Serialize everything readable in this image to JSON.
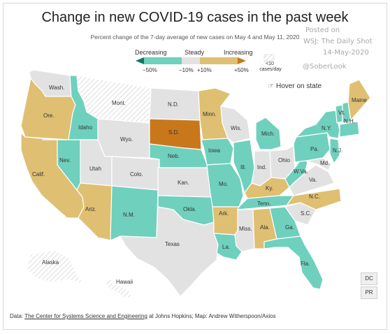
{
  "title": "Change in new COVID-19 cases in the past week",
  "subtitle": "Percent change of the 7-day average of new cases on May 4 and May 11, 2020",
  "watermark": {
    "line1": "Posted on",
    "line2": "WSJ: The Daily Shot",
    "line3": "14-May-2020",
    "handle": "@SoberLook"
  },
  "legend": {
    "decreasing": "Decreasing",
    "steady": "Steady",
    "increasing": "Increasing",
    "tick_neg50": "−50%",
    "tick_neg10": "−10%",
    "tick_pos10": "+10%",
    "tick_pos50": "+50%",
    "small_a": "<10",
    "small_b": "cases/day"
  },
  "hover_text": "Hover on state",
  "colors": {
    "decreasing_strong": "#0b7a5c",
    "decreasing": "#6fd0bd",
    "steady": "#e2e2e2",
    "increasing": "#dfbf72",
    "increasing_strong": "#c8781a",
    "few_cases_hatch": "#d6d6d6"
  },
  "states": {
    "wa": "Wash.",
    "or": "Ore.",
    "ca": "Calif.",
    "id": "Idaho",
    "nv": "Nev.",
    "mt": "Mont.",
    "wy": "Wyo.",
    "ut": "Utah",
    "az": "Ariz.",
    "co": "Colo.",
    "nm": "N.M.",
    "nd": "N.D.",
    "sd": "S.D.",
    "ne": "Neb.",
    "ks": "Kan.",
    "ok": "Okla.",
    "tx": "Texas",
    "mn": "Minn.",
    "ia": "Iowa",
    "mo": "Mo.",
    "ar": "Ark.",
    "la": "La.",
    "wi": "Wis.",
    "il": "Ill.",
    "mi": "Mich.",
    "in": "Ind.",
    "oh": "Ohio",
    "ky": "Ky.",
    "tn": "Tenn.",
    "ms": "Miss.",
    "al": "Ala.",
    "ga": "Ga.",
    "fl": "Fla.",
    "sc": "S.C.",
    "nc": "N.C.",
    "va": "Va.",
    "wv": "W.Va.",
    "md": "Md.",
    "pa": "Pa.",
    "ny": "N.Y.",
    "nj": "N.J.",
    "vt": "Vt.",
    "nh": "N.H.",
    "me": "Maine",
    "ak": "Alaska",
    "hi": "Hawaii"
  },
  "territories": {
    "dc": "DC",
    "pr": "PR"
  },
  "source": {
    "prefix": "Data: ",
    "link": "The Center for Systems Science and Engineering",
    "suffix": " at Johns Hopkins; Map: Andrew Witherspoon/Axios"
  }
}
